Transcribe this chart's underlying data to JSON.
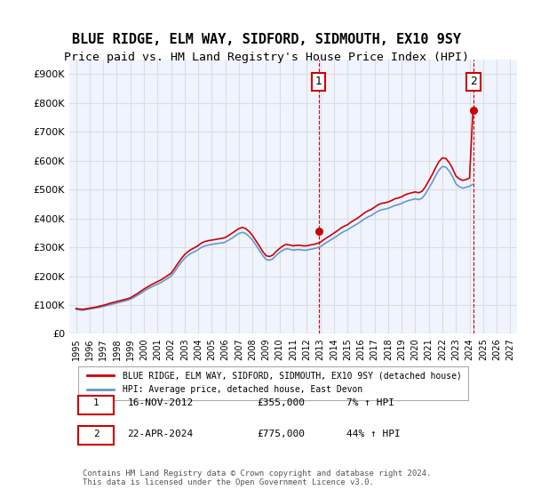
{
  "title": "BLUE RIDGE, ELM WAY, SIDFORD, SIDMOUTH, EX10 9SY",
  "subtitle": "Price paid vs. HM Land Registry's House Price Index (HPI)",
  "title_fontsize": 11,
  "subtitle_fontsize": 9.5,
  "ylabel_ticks": [
    "£0",
    "£100K",
    "£200K",
    "£300K",
    "£400K",
    "£500K",
    "£600K",
    "£700K",
    "£800K",
    "£900K"
  ],
  "ytick_values": [
    0,
    100000,
    200000,
    300000,
    400000,
    500000,
    600000,
    700000,
    800000,
    900000
  ],
  "ylim": [
    0,
    950000
  ],
  "xlim_start": 1994.5,
  "xlim_end": 2027.5,
  "xtick_years": [
    1995,
    1996,
    1997,
    1998,
    1999,
    2000,
    2001,
    2002,
    2003,
    2004,
    2005,
    2006,
    2007,
    2008,
    2009,
    2010,
    2011,
    2012,
    2013,
    2014,
    2015,
    2016,
    2017,
    2018,
    2019,
    2020,
    2021,
    2022,
    2023,
    2024,
    2025,
    2026,
    2027
  ],
  "grid_color": "#dddddd",
  "background_color": "#f0f4ff",
  "plot_bg_color": "#ffffff",
  "red_color": "#cc0000",
  "blue_color": "#6699cc",
  "annotation_box_color": "#cc0000",
  "legend_label_red": "BLUE RIDGE, ELM WAY, SIDFORD, SIDMOUTH, EX10 9SY (detached house)",
  "legend_label_blue": "HPI: Average price, detached house, East Devon",
  "sale1_label": "1",
  "sale1_date": "16-NOV-2012",
  "sale1_price": "£355,000",
  "sale1_hpi": "7% ↑ HPI",
  "sale1_x": 2012.88,
  "sale1_y": 355000,
  "sale2_label": "2",
  "sale2_date": "22-APR-2024",
  "sale2_price": "£775,000",
  "sale2_hpi": "44% ↑ HPI",
  "sale2_x": 2024.3,
  "sale2_y": 775000,
  "footnote": "Contains HM Land Registry data © Crown copyright and database right 2024.\nThis data is licensed under the Open Government Licence v3.0.",
  "hpi_data_x": [
    1995.0,
    1995.25,
    1995.5,
    1995.75,
    1996.0,
    1996.25,
    1996.5,
    1996.75,
    1997.0,
    1997.25,
    1997.5,
    1997.75,
    1998.0,
    1998.25,
    1998.5,
    1998.75,
    1999.0,
    1999.25,
    1999.5,
    1999.75,
    2000.0,
    2000.25,
    2000.5,
    2000.75,
    2001.0,
    2001.25,
    2001.5,
    2001.75,
    2002.0,
    2002.25,
    2002.5,
    2002.75,
    2003.0,
    2003.25,
    2003.5,
    2003.75,
    2004.0,
    2004.25,
    2004.5,
    2004.75,
    2005.0,
    2005.25,
    2005.5,
    2005.75,
    2006.0,
    2006.25,
    2006.5,
    2006.75,
    2007.0,
    2007.25,
    2007.5,
    2007.75,
    2008.0,
    2008.25,
    2008.5,
    2008.75,
    2009.0,
    2009.25,
    2009.5,
    2009.75,
    2010.0,
    2010.25,
    2010.5,
    2010.75,
    2011.0,
    2011.25,
    2011.5,
    2011.75,
    2012.0,
    2012.25,
    2012.5,
    2012.75,
    2013.0,
    2013.25,
    2013.5,
    2013.75,
    2014.0,
    2014.25,
    2014.5,
    2014.75,
    2015.0,
    2015.25,
    2015.5,
    2015.75,
    2016.0,
    2016.25,
    2016.5,
    2016.75,
    2017.0,
    2017.25,
    2017.5,
    2017.75,
    2018.0,
    2018.25,
    2018.5,
    2018.75,
    2019.0,
    2019.25,
    2019.5,
    2019.75,
    2020.0,
    2020.25,
    2020.5,
    2020.75,
    2021.0,
    2021.25,
    2021.5,
    2021.75,
    2022.0,
    2022.25,
    2022.5,
    2022.75,
    2023.0,
    2023.25,
    2023.5,
    2023.75,
    2024.0,
    2024.25
  ],
  "hpi_data_y": [
    85000,
    83000,
    82000,
    84000,
    86000,
    88000,
    90000,
    92000,
    95000,
    98000,
    101000,
    104000,
    107000,
    110000,
    113000,
    116000,
    120000,
    126000,
    133000,
    140000,
    148000,
    155000,
    161000,
    167000,
    172000,
    178000,
    185000,
    192000,
    200000,
    215000,
    232000,
    248000,
    262000,
    272000,
    280000,
    285000,
    292000,
    300000,
    305000,
    308000,
    310000,
    312000,
    314000,
    315000,
    318000,
    325000,
    332000,
    340000,
    348000,
    352000,
    348000,
    338000,
    325000,
    308000,
    290000,
    272000,
    258000,
    255000,
    260000,
    272000,
    282000,
    290000,
    295000,
    293000,
    290000,
    292000,
    292000,
    290000,
    290000,
    293000,
    295000,
    298000,
    302000,
    310000,
    318000,
    325000,
    332000,
    340000,
    348000,
    355000,
    360000,
    368000,
    375000,
    382000,
    390000,
    398000,
    405000,
    410000,
    418000,
    425000,
    430000,
    432000,
    435000,
    440000,
    445000,
    448000,
    452000,
    458000,
    462000,
    465000,
    468000,
    465000,
    470000,
    485000,
    505000,
    525000,
    548000,
    568000,
    580000,
    578000,
    565000,
    545000,
    520000,
    510000,
    505000,
    508000,
    512000,
    518000
  ],
  "red_data_x": [
    1995.0,
    1995.25,
    1995.5,
    1995.75,
    1996.0,
    1996.25,
    1996.5,
    1996.75,
    1997.0,
    1997.25,
    1997.5,
    1997.75,
    1998.0,
    1998.25,
    1998.5,
    1998.75,
    1999.0,
    1999.25,
    1999.5,
    1999.75,
    2000.0,
    2000.25,
    2000.5,
    2000.75,
    2001.0,
    2001.25,
    2001.5,
    2001.75,
    2002.0,
    2002.25,
    2002.5,
    2002.75,
    2003.0,
    2003.25,
    2003.5,
    2003.75,
    2004.0,
    2004.25,
    2004.5,
    2004.75,
    2005.0,
    2005.25,
    2005.5,
    2005.75,
    2006.0,
    2006.25,
    2006.5,
    2006.75,
    2007.0,
    2007.25,
    2007.5,
    2007.75,
    2008.0,
    2008.25,
    2008.5,
    2008.75,
    2009.0,
    2009.25,
    2009.5,
    2009.75,
    2010.0,
    2010.25,
    2010.5,
    2010.75,
    2011.0,
    2011.25,
    2011.5,
    2011.75,
    2012.0,
    2012.25,
    2012.5,
    2012.75,
    2013.0,
    2013.25,
    2013.5,
    2013.75,
    2014.0,
    2014.25,
    2014.5,
    2014.75,
    2015.0,
    2015.25,
    2015.5,
    2015.75,
    2016.0,
    2016.25,
    2016.5,
    2016.75,
    2017.0,
    2017.25,
    2017.5,
    2017.75,
    2018.0,
    2018.25,
    2018.5,
    2018.75,
    2019.0,
    2019.25,
    2019.5,
    2019.75,
    2020.0,
    2020.25,
    2020.5,
    2020.75,
    2021.0,
    2021.25,
    2021.5,
    2021.75,
    2022.0,
    2022.25,
    2022.5,
    2022.75,
    2023.0,
    2023.25,
    2023.5,
    2023.75,
    2024.0,
    2024.25
  ],
  "red_data_y": [
    88000,
    86000,
    85000,
    87000,
    89000,
    91000,
    93000,
    96000,
    99000,
    102000,
    106000,
    109000,
    112000,
    115000,
    118000,
    121000,
    125000,
    132000,
    139000,
    147000,
    155000,
    162000,
    169000,
    175000,
    181000,
    187000,
    194000,
    202000,
    210000,
    226000,
    244000,
    260000,
    275000,
    285000,
    293000,
    299000,
    306000,
    315000,
    320000,
    323000,
    325000,
    327000,
    329000,
    331000,
    334000,
    341000,
    349000,
    357000,
    365000,
    369000,
    365000,
    355000,
    341000,
    323000,
    305000,
    286000,
    271000,
    268000,
    273000,
    286000,
    296000,
    305000,
    310000,
    308000,
    305000,
    307000,
    307000,
    305000,
    305000,
    308000,
    310000,
    313000,
    317000,
    326000,
    334000,
    341000,
    349000,
    357000,
    366000,
    373000,
    378000,
    387000,
    394000,
    401000,
    410000,
    419000,
    426000,
    431000,
    439000,
    447000,
    452000,
    454000,
    457000,
    462000,
    468000,
    471000,
    475000,
    482000,
    486000,
    489000,
    492000,
    489000,
    494000,
    510000,
    531000,
    552000,
    576000,
    597000,
    610000,
    608000,
    594000,
    573000,
    547000,
    537000,
    532000,
    535000,
    540000,
    775000
  ]
}
